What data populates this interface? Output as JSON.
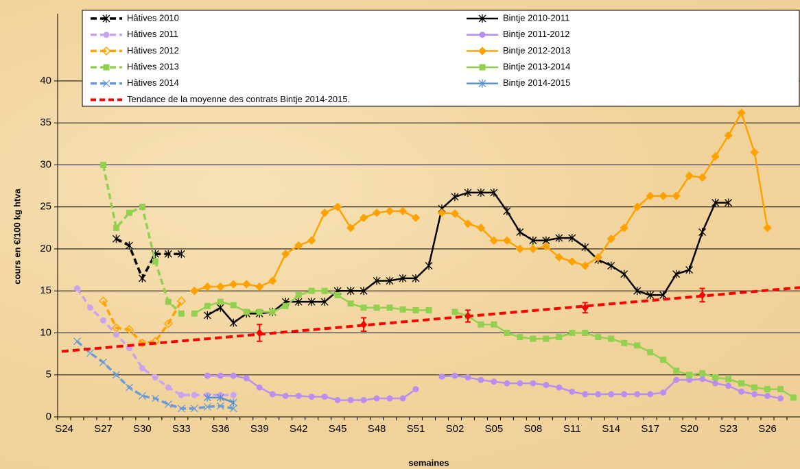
{
  "chart_data": {
    "type": "line",
    "y_label": "cours en €/100 kg htva",
    "x_label": "semaines",
    "categories": [
      "S24",
      null,
      null,
      "S27",
      null,
      null,
      "S30",
      null,
      null,
      "S33",
      null,
      null,
      "S36",
      null,
      null,
      "S39",
      null,
      null,
      "S42",
      null,
      null,
      "S45",
      null,
      null,
      "S48",
      null,
      null,
      "S51",
      null,
      null,
      "S02",
      null,
      null,
      "S05",
      null,
      null,
      "S08",
      null,
      null,
      "S11",
      null,
      null,
      "S14",
      null,
      null,
      "S17",
      null,
      null,
      "S20",
      null,
      null,
      "S23",
      null,
      null,
      "S26",
      null,
      null
    ],
    "ylim": [
      0,
      48
    ],
    "yticks": [
      0,
      5,
      10,
      15,
      20,
      25,
      30,
      35,
      40
    ],
    "grid": true,
    "series": [
      {
        "name": "Hâtives 2010",
        "color": "#000000",
        "dashed": true,
        "marker": "star",
        "values": [
          null,
          null,
          null,
          null,
          21.2,
          20.4,
          16.5,
          19.4,
          19.4,
          19.4,
          null,
          null,
          null,
          null,
          null,
          null,
          null,
          null,
          null,
          null,
          null,
          null,
          null,
          null,
          null,
          null,
          null,
          null,
          null,
          null,
          null,
          null,
          null,
          null,
          null,
          null,
          null,
          null,
          null,
          null,
          null,
          null,
          null,
          null,
          null,
          null,
          null,
          null,
          null,
          null,
          null,
          null,
          null,
          null,
          null,
          null,
          null
        ]
      },
      {
        "name": "Bintje 2010-2011",
        "color": "#000000",
        "dashed": false,
        "marker": "star",
        "values": [
          null,
          null,
          null,
          null,
          null,
          null,
          null,
          null,
          null,
          null,
          null,
          12.1,
          13,
          11.2,
          12.3,
          12.3,
          12.5,
          13.7,
          13.7,
          13.7,
          13.7,
          15,
          15,
          15,
          16.2,
          16.2,
          16.5,
          16.5,
          18,
          24.8,
          26.2,
          26.7,
          26.7,
          26.7,
          24.5,
          22,
          21,
          21,
          21.3,
          21.3,
          20.2,
          18.7,
          18,
          17,
          15,
          14.5,
          14.5,
          17,
          17.5,
          22,
          25.5,
          25.5,
          null,
          null,
          null,
          null,
          null
        ]
      },
      {
        "name": "Hâtives 2011",
        "color": "#c9a3ef",
        "dashed": true,
        "marker": "circle",
        "values": [
          null,
          15.3,
          13,
          11.5,
          9.8,
          8.2,
          5.8,
          4.7,
          3.5,
          2.6,
          2.6,
          2.6,
          2.6,
          2.6,
          null,
          null,
          null,
          null,
          null,
          null,
          null,
          null,
          null,
          null,
          null,
          null,
          null,
          null,
          null,
          null,
          null,
          null,
          null,
          null,
          null,
          null,
          null,
          null,
          null,
          null,
          null,
          null,
          null,
          null,
          null,
          null,
          null,
          null,
          null,
          null,
          null,
          null,
          null,
          null,
          null,
          null,
          null
        ]
      },
      {
        "name": "Bintje 2011-2012",
        "color": "#b98ef0",
        "dashed": false,
        "marker": "circle",
        "values": [
          null,
          null,
          null,
          null,
          null,
          null,
          null,
          null,
          null,
          null,
          null,
          4.9,
          4.9,
          4.9,
          4.6,
          3.5,
          2.7,
          2.5,
          2.5,
          2.4,
          2.4,
          2,
          2,
          2,
          2.2,
          2.2,
          2.2,
          3.3,
          null,
          4.8,
          4.9,
          4.7,
          4.4,
          4.2,
          4,
          4,
          4,
          3.8,
          3.5,
          3,
          2.7,
          2.7,
          2.7,
          2.7,
          2.7,
          2.7,
          2.9,
          4.4,
          4.4,
          4.5,
          4,
          3.7,
          3,
          2.7,
          2.5,
          2.2,
          null
        ]
      },
      {
        "name": "Hâtives 2012",
        "color": "#ffa200",
        "dashed": true,
        "marker": "open-diamond",
        "values": [
          null,
          null,
          null,
          13.8,
          10.6,
          10.4,
          8.8,
          9,
          11.1,
          13.8,
          null,
          null,
          null,
          null,
          null,
          null,
          null,
          null,
          null,
          null,
          null,
          null,
          null,
          null,
          null,
          null,
          null,
          null,
          null,
          null,
          null,
          null,
          null,
          null,
          null,
          null,
          null,
          null,
          null,
          null,
          null,
          null,
          null,
          null,
          null,
          null,
          null,
          null,
          null,
          null,
          null,
          null,
          null,
          null,
          null,
          null,
          null
        ]
      },
      {
        "name": "Bintje 2012-2013",
        "color": "#ffa200",
        "dashed": false,
        "marker": "diamond",
        "values": [
          null,
          null,
          null,
          null,
          null,
          null,
          null,
          null,
          null,
          null,
          15,
          15.5,
          15.5,
          15.8,
          15.8,
          15.5,
          16.2,
          19.4,
          20.4,
          21,
          24.3,
          25,
          22.5,
          23.7,
          24.3,
          24.5,
          24.5,
          23.7,
          null,
          24.3,
          24.2,
          23,
          22.5,
          21,
          21,
          20,
          20,
          20.3,
          19,
          18.5,
          18,
          19,
          21.2,
          22.5,
          25,
          26.3,
          26.3,
          26.3,
          28.7,
          28.5,
          31,
          33.5,
          36.2,
          31.5,
          22.5,
          null,
          null
        ]
      },
      {
        "name": "Hâtives 2013",
        "color": "#92d050",
        "dashed": true,
        "marker": "square",
        "values": [
          null,
          null,
          null,
          30,
          22.5,
          24.3,
          25,
          18.5,
          13.7,
          12.3,
          null,
          null,
          null,
          null,
          null,
          null,
          null,
          null,
          null,
          null,
          null,
          null,
          null,
          null,
          null,
          null,
          null,
          null,
          null,
          null,
          null,
          null,
          null,
          null,
          null,
          null,
          null,
          null,
          null,
          null,
          null,
          null,
          null,
          null,
          null,
          null,
          null,
          null,
          null,
          null,
          null,
          null,
          null,
          null,
          null,
          null,
          null
        ]
      },
      {
        "name": "Bintje 2013-2014",
        "color": "#92d050",
        "dashed": false,
        "marker": "square",
        "values": [
          null,
          null,
          null,
          null,
          null,
          null,
          null,
          null,
          null,
          null,
          12.3,
          13.2,
          13.7,
          13.3,
          12.5,
          12.5,
          12.5,
          13.2,
          14.5,
          15,
          15,
          14.5,
          13.5,
          13,
          13,
          13,
          12.8,
          12.7,
          12.7,
          null,
          12.5,
          12,
          11,
          11,
          10,
          9.5,
          9.3,
          9.3,
          9.5,
          10,
          10,
          9.5,
          9.3,
          8.8,
          8.5,
          7.7,
          6.8,
          5.5,
          5,
          5.2,
          4.7,
          4.5,
          4,
          3.5,
          3.3,
          3.3,
          2.3
        ]
      },
      {
        "name": "Hâtives 2014",
        "color": "#6a9bd8",
        "dashed": true,
        "marker": "x",
        "values": [
          null,
          9,
          7.6,
          6.5,
          5,
          3.5,
          2.5,
          2.2,
          1.5,
          1,
          1,
          1.2,
          1.3,
          1,
          null,
          null,
          null,
          null,
          null,
          null,
          null,
          null,
          null,
          null,
          null,
          null,
          null,
          null,
          null,
          null,
          null,
          null,
          null,
          null,
          null,
          null,
          null,
          null,
          null,
          null,
          null,
          null,
          null,
          null,
          null,
          null,
          null,
          null,
          null,
          null,
          null,
          null,
          null,
          null,
          null,
          null,
          null
        ]
      },
      {
        "name": "Bintje 2014-2015",
        "color": "#5b8fd0",
        "dashed": false,
        "marker": "star",
        "values": [
          null,
          null,
          null,
          null,
          null,
          null,
          null,
          null,
          null,
          null,
          null,
          2.3,
          2.3,
          1.7,
          null,
          null,
          null,
          null,
          null,
          null,
          null,
          null,
          null,
          null,
          null,
          null,
          null,
          null,
          null,
          null,
          null,
          null,
          null,
          null,
          null,
          null,
          null,
          null,
          null,
          null,
          null,
          null,
          null,
          null,
          null,
          null,
          null,
          null,
          null,
          null,
          null,
          null,
          null,
          null,
          null,
          null,
          null
        ]
      }
    ],
    "trend": {
      "name": "Tendance de la moyenne des contrats Bintje 2014-2015.",
      "color": "#ff0000",
      "start": 7.8,
      "end": 15.4
    },
    "error_points": {
      "color": "#ff0000",
      "values": [
        null,
        null,
        null,
        null,
        null,
        null,
        null,
        null,
        null,
        null,
        null,
        null,
        null,
        null,
        null,
        10,
        null,
        null,
        null,
        null,
        null,
        null,
        null,
        11,
        null,
        null,
        null,
        null,
        null,
        null,
        null,
        12,
        null,
        null,
        null,
        null,
        null,
        null,
        null,
        null,
        13,
        null,
        null,
        null,
        null,
        null,
        null,
        null,
        null,
        14.5,
        null,
        null,
        null,
        null,
        null,
        null,
        null
      ],
      "errors": [
        null,
        null,
        null,
        null,
        null,
        null,
        null,
        null,
        null,
        null,
        null,
        null,
        null,
        null,
        null,
        1,
        null,
        null,
        null,
        null,
        null,
        null,
        null,
        0.8,
        null,
        null,
        null,
        null,
        null,
        null,
        null,
        0.7,
        null,
        null,
        null,
        null,
        null,
        null,
        null,
        null,
        0.6,
        null,
        null,
        null,
        null,
        null,
        null,
        null,
        null,
        0.8,
        null,
        null,
        null,
        null,
        null,
        null,
        null
      ]
    }
  }
}
